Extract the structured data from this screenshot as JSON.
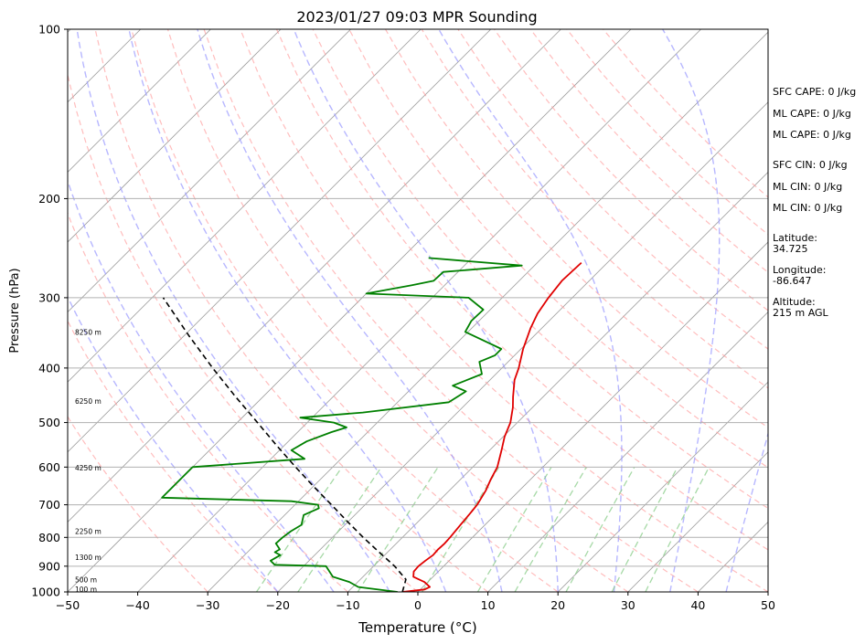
{
  "chart_data": {
    "type": "line",
    "title": "2023/01/27 09:03 MPR Sounding",
    "xlabel": "Temperature (°C)",
    "ylabel": "Pressure (hPa)",
    "xlim": [
      -50,
      50
    ],
    "ylim": [
      1000,
      100
    ],
    "yscale": "log",
    "grid": "horizontal at labeled pressures",
    "x_ticks": [
      -50,
      -40,
      -30,
      -20,
      -10,
      0,
      10,
      20,
      30,
      40,
      50
    ],
    "y_ticks": [
      100,
      200,
      300,
      400,
      500,
      600,
      700,
      800,
      900,
      1000
    ],
    "colors": {
      "temperature": "#e00000",
      "dewpoint": "#008000",
      "parcel": "#000000",
      "dry_adiabats": "#ff9a9a",
      "moist_adiabats": "#9999ff",
      "mixing_ratio": "#88cc88",
      "isotherms": "#9c9c9c",
      "hodo": "#d080d0"
    },
    "series": [
      {
        "name": "",
        "kind": "temperature",
        "points": [
          [
            1000,
            -2.2
          ],
          [
            990,
            0.6
          ],
          [
            980,
            1.0
          ],
          [
            960,
            -0.5
          ],
          [
            940,
            -2.8
          ],
          [
            920,
            -3.5
          ],
          [
            900,
            -3.6
          ],
          [
            880,
            -3.4
          ],
          [
            860,
            -3.1
          ],
          [
            840,
            -3.2
          ],
          [
            820,
            -3.1
          ],
          [
            800,
            -3.2
          ],
          [
            760,
            -3.5
          ],
          [
            720,
            -3.8
          ],
          [
            700,
            -4.0
          ],
          [
            660,
            -4.8
          ],
          [
            630,
            -5.7
          ],
          [
            600,
            -6.5
          ],
          [
            560,
            -8.3
          ],
          [
            530,
            -9.8
          ],
          [
            500,
            -11.0
          ],
          [
            470,
            -12.8
          ],
          [
            450,
            -14.3
          ],
          [
            420,
            -16.5
          ],
          [
            400,
            -17.6
          ],
          [
            370,
            -19.7
          ],
          [
            340,
            -21.6
          ],
          [
            320,
            -22.7
          ],
          [
            300,
            -23.4
          ],
          [
            280,
            -23.9
          ],
          [
            260,
            -23.7
          ]
        ]
      },
      {
        "name": "",
        "kind": "dewpoint",
        "points": [
          [
            1000,
            -2.9
          ],
          [
            980,
            -9.2
          ],
          [
            960,
            -11.2
          ],
          [
            940,
            -14.3
          ],
          [
            900,
            -16.8
          ],
          [
            895,
            -24.3
          ],
          [
            880,
            -25.5
          ],
          [
            860,
            -24.9
          ],
          [
            850,
            -26.1
          ],
          [
            840,
            -25.8
          ],
          [
            820,
            -27.2
          ],
          [
            800,
            -27.1
          ],
          [
            780,
            -26.8
          ],
          [
            760,
            -26.2
          ],
          [
            730,
            -27.3
          ],
          [
            710,
            -26.1
          ],
          [
            700,
            -26.7
          ],
          [
            690,
            -31.0
          ],
          [
            680,
            -50.0
          ],
          [
            600,
            -50.0
          ],
          [
            580,
            -35.2
          ],
          [
            560,
            -38.3
          ],
          [
            540,
            -37.4
          ],
          [
            520,
            -35.2
          ],
          [
            510,
            -33.7
          ],
          [
            500,
            -36.2
          ],
          [
            490,
            -41.7
          ],
          [
            480,
            -33.5
          ],
          [
            460,
            -22.7
          ],
          [
            440,
            -21.8
          ],
          [
            430,
            -24.5
          ],
          [
            410,
            -22.0
          ],
          [
            390,
            -24.1
          ],
          [
            380,
            -22.8
          ],
          [
            370,
            -22.8
          ],
          [
            345,
            -30.4
          ],
          [
            330,
            -31.1
          ],
          [
            315,
            -31.0
          ],
          [
            300,
            -34.8
          ],
          [
            295,
            -50.0
          ],
          [
            285,
            -44.7
          ],
          [
            280,
            -42.2
          ],
          [
            270,
            -42.1
          ],
          [
            263,
            -31.8
          ],
          [
            255,
            -46.2
          ]
        ]
      },
      {
        "name": "",
        "kind": "parcel",
        "points": [
          [
            1000,
            -2.2
          ],
          [
            950,
            -3.5
          ],
          [
            900,
            -7.0
          ],
          [
            850,
            -11.2
          ],
          [
            800,
            -15.6
          ],
          [
            750,
            -20.1
          ],
          [
            700,
            -24.8
          ],
          [
            650,
            -29.9
          ],
          [
            600,
            -35.3
          ],
          [
            550,
            -41.0
          ],
          [
            500,
            -47.1
          ],
          [
            450,
            -53.9
          ],
          [
            400,
            -61.3
          ],
          [
            350,
            -69.4
          ],
          [
            300,
            -78.4
          ]
        ]
      }
    ],
    "height_labels": [
      {
        "label": "100 m",
        "p": 988
      },
      {
        "label": "500 m",
        "p": 950
      },
      {
        "label": "1300 m",
        "p": 868
      },
      {
        "label": "2250 m",
        "p": 780
      },
      {
        "label": "4250 m",
        "p": 602
      },
      {
        "label": "6250 m",
        "p": 458
      },
      {
        "label": "8250 m",
        "p": 345
      }
    ],
    "indices": [
      "SFC CAPE: 0 J/kg",
      "ML CAPE: 0 J/kg",
      "ML CAPE: 0 J/kg",
      "SFC CIN: 0 J/kg",
      "ML CIN: 0 J/kg",
      "ML CIN: 0 J/kg"
    ],
    "location": {
      "latitude_label": "Latitude:",
      "latitude": "34.725",
      "longitude_label": "Longitude:",
      "longitude": "-86.647",
      "altitude_label": "Altitude:",
      "altitude": "215 m AGL"
    }
  }
}
